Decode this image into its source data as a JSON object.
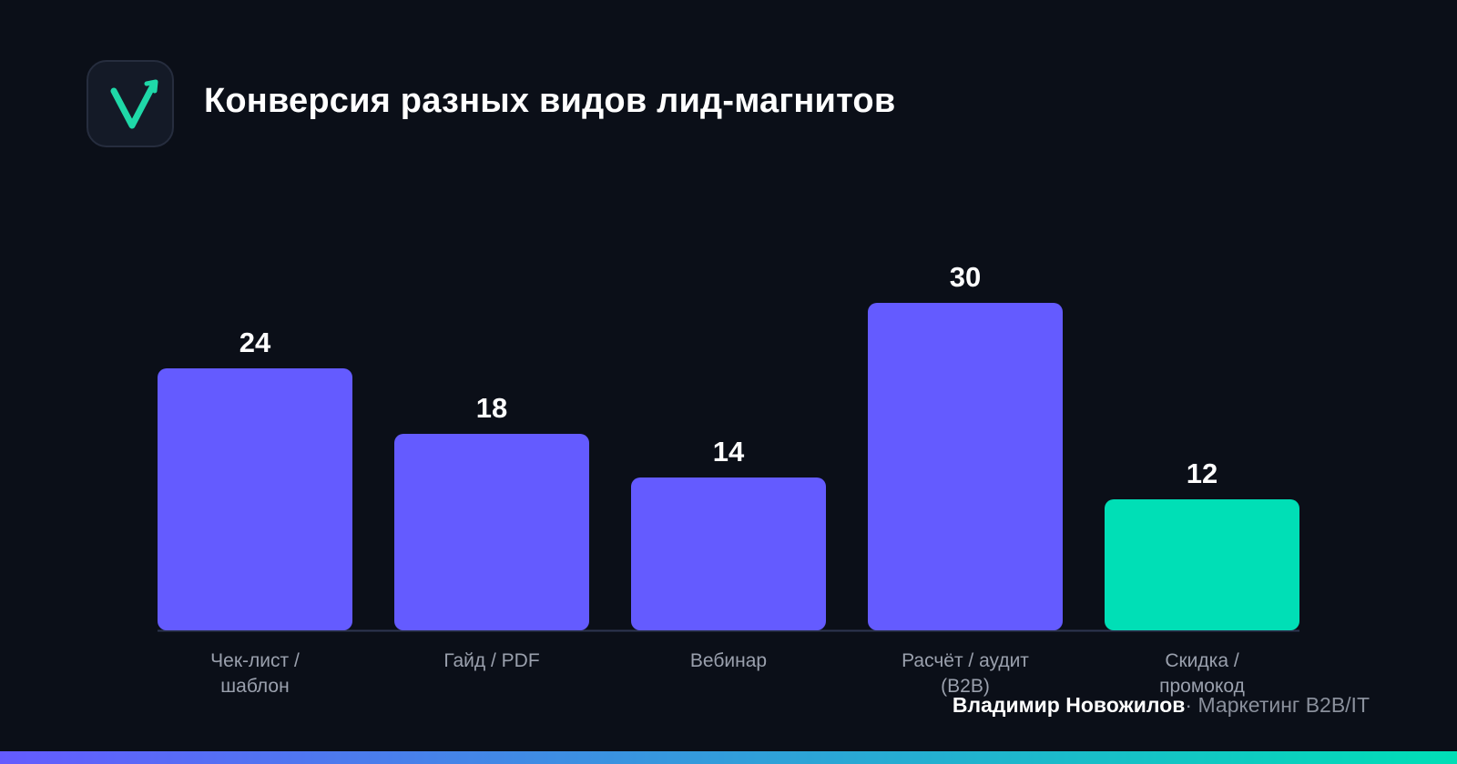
{
  "header": {
    "title": "Конверсия разных видов лид-магнитов"
  },
  "logo": {
    "icon": "checkmark-arrow-icon",
    "accent": "#1fd8a8"
  },
  "colors": {
    "background": "#0b0f18",
    "bar_default": "#645bff",
    "bar_highlight": "#00dfb6",
    "axis": "#2e3550",
    "gradient_start": "#645bff",
    "gradient_end": "#00dfb6"
  },
  "chart_data": {
    "type": "bar",
    "title": "Конверсия разных видов лид-магнитов",
    "xlabel": "",
    "ylabel": "",
    "ylim": [
      0,
      30
    ],
    "grid": false,
    "categories": [
      [
        "Чек-лист /",
        "шаблон"
      ],
      [
        "Гайд / PDF"
      ],
      [
        "Вебинар"
      ],
      [
        "Расчёт / аудит",
        "(B2B)"
      ],
      [
        "Скидка /",
        "промокод"
      ]
    ],
    "values": [
      24,
      18,
      14,
      30,
      12
    ],
    "highlight_index": 4
  },
  "footer": {
    "name": "Владимир Новожилов",
    "separator": "·",
    "role": "Маркетинг B2B/IT"
  }
}
